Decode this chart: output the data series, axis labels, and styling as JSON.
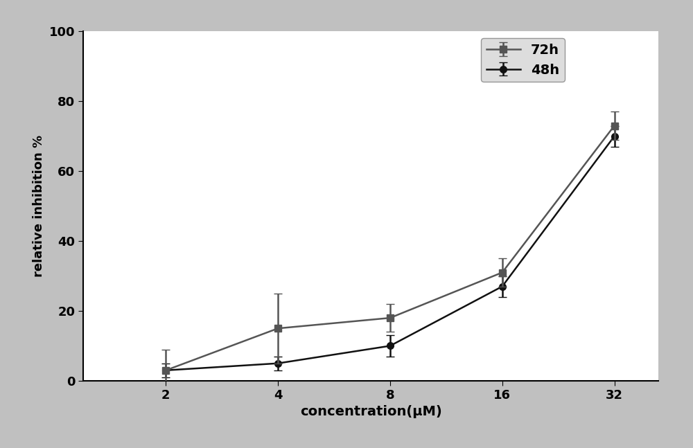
{
  "x_values": [
    2,
    4,
    8,
    16,
    32
  ],
  "series_72h": {
    "label": "72h",
    "y": [
      3,
      15,
      18,
      31,
      73
    ],
    "yerr": [
      6,
      10,
      4,
      4,
      4
    ],
    "color": "#555555",
    "marker": "s",
    "markersize": 7,
    "linewidth": 1.8
  },
  "series_48h": {
    "label": "48h",
    "y": [
      3,
      5,
      10,
      27,
      70
    ],
    "yerr": [
      2,
      2,
      3,
      3,
      3
    ],
    "color": "#111111",
    "marker": "o",
    "markersize": 7,
    "linewidth": 1.8
  },
  "xlabel": "concentration(μM)",
  "ylabel": "relative inhibition %",
  "ylim": [
    0,
    100
  ],
  "xlim": [
    1.2,
    42
  ],
  "xticks": [
    2,
    4,
    8,
    16,
    32
  ],
  "yticks": [
    0,
    20,
    40,
    60,
    80,
    100
  ],
  "background_color": "#c8c8c8",
  "plot_bg_color": "#ffffff",
  "grid": false,
  "xlabel_fontsize": 14,
  "ylabel_fontsize": 13,
  "tick_fontsize": 13,
  "legend_fontsize": 14
}
